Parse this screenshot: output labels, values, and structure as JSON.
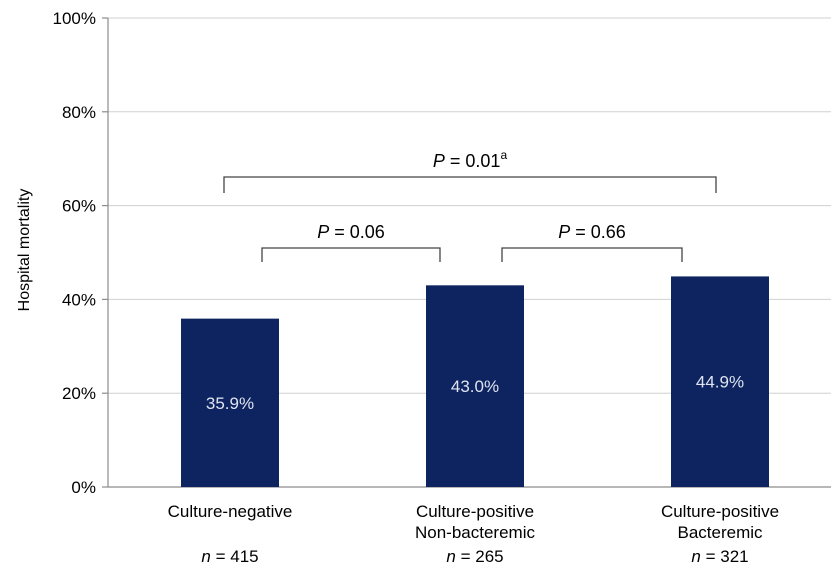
{
  "chart_data": {
    "type": "bar",
    "ylabel": "Hospital mortality",
    "ylim": [
      0,
      100
    ],
    "y_ticks": [
      "0%",
      "20%",
      "40%",
      "60%",
      "80%",
      "100%"
    ],
    "grid": true,
    "color": "#0d2460",
    "categories": [
      {
        "line1": "Culture-negative",
        "line2": "",
        "n_label": "n",
        "n_value": "= 415"
      },
      {
        "line1": "Culture-positive",
        "line2": "Non-bacteremic",
        "n_label": "n",
        "n_value": "= 265"
      },
      {
        "line1": "Culture-positive",
        "line2": "Bacteremic",
        "n_label": "n",
        "n_value": "= 321"
      }
    ],
    "values": [
      35.9,
      43.0,
      44.9
    ],
    "data_labels": [
      "35.9%",
      "43.0%",
      "44.9%"
    ],
    "comparisons": [
      {
        "from": 0,
        "to": 1,
        "p_label": "P",
        "p_value": "= 0.06",
        "superscript": ""
      },
      {
        "from": 1,
        "to": 2,
        "p_label": "P",
        "p_value": "= 0.66",
        "superscript": ""
      },
      {
        "from": 0,
        "to": 2,
        "p_label": "P",
        "p_value": "= 0.01",
        "superscript": "a"
      }
    ]
  }
}
